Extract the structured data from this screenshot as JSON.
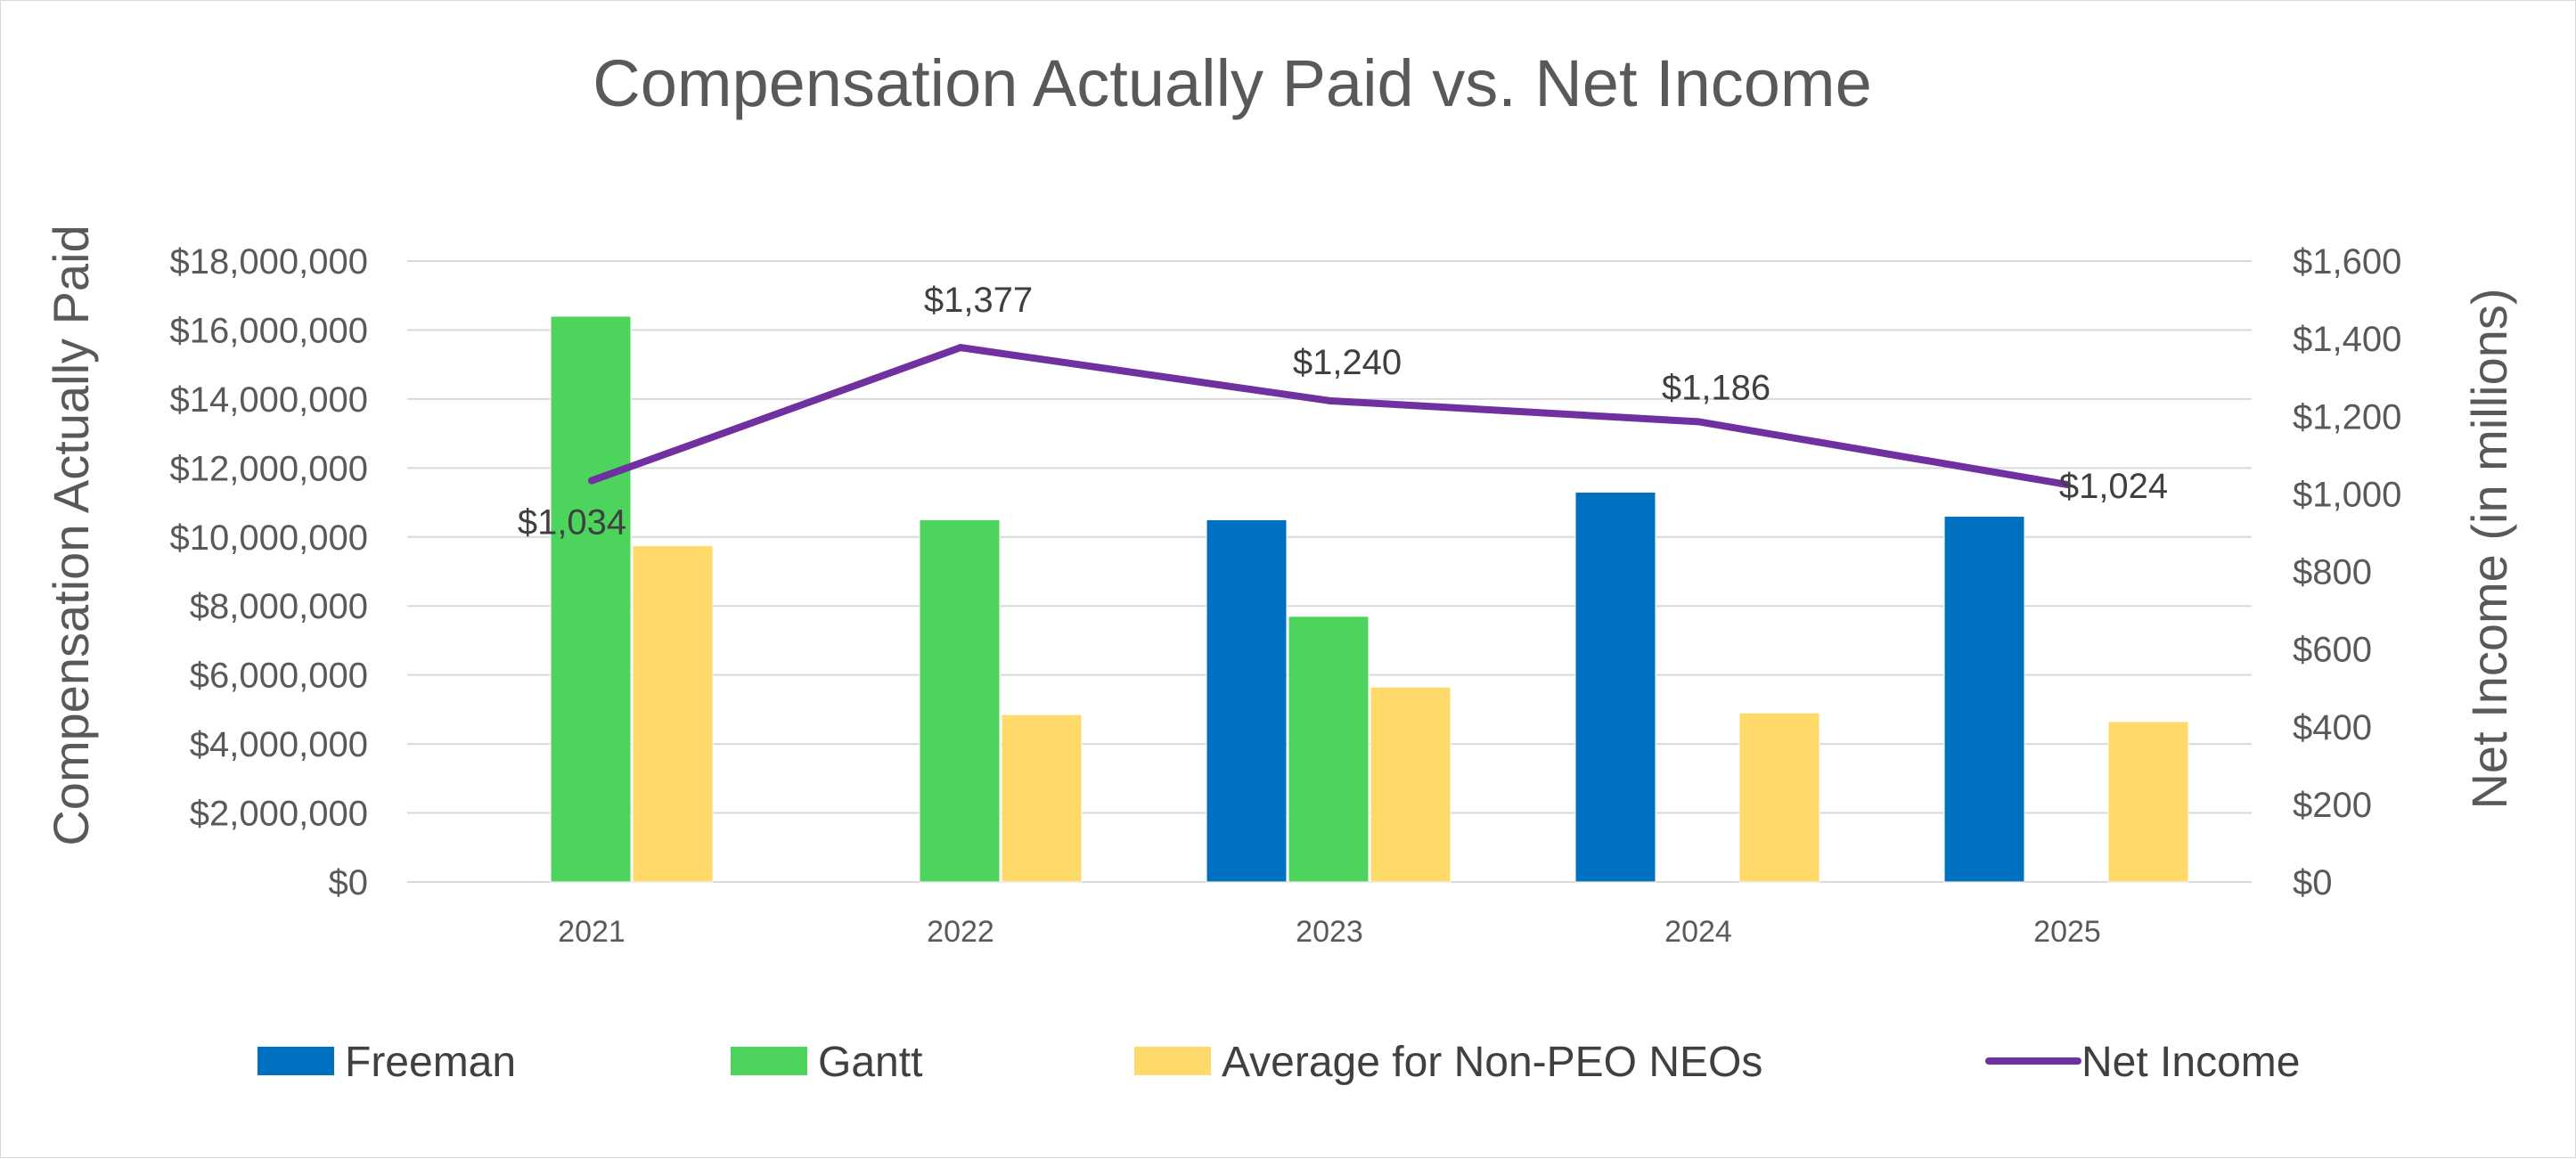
{
  "chart_data": {
    "type": "bar",
    "title": "Compensation Actually Paid vs. Net Income",
    "categories": [
      "2021",
      "2022",
      "2023",
      "2024",
      "2025"
    ],
    "y_left": {
      "label": "Compensation Actually Paid",
      "min": 0,
      "max": 18000000,
      "step": 2000000,
      "tick_labels": [
        "$0",
        "$2,000,000",
        "$4,000,000",
        "$6,000,000",
        "$8,000,000",
        "$10,000,000",
        "$12,000,000",
        "$14,000,000",
        "$16,000,000",
        "$18,000,000"
      ]
    },
    "y_right": {
      "label": "Net Income (in millions)",
      "min": 0,
      "max": 1600,
      "step": 200,
      "tick_labels": [
        "$0",
        "$200",
        "$400",
        "$600",
        "$800",
        "$1,000",
        "$1,200",
        "$1,400",
        "$1,600"
      ]
    },
    "series": [
      {
        "name": "Freeman",
        "type": "bar",
        "color": "#0070C0",
        "values": [
          null,
          null,
          10500000,
          11300000,
          10600000
        ]
      },
      {
        "name": "Gantt",
        "type": "bar",
        "color": "#4CD45C",
        "values": [
          16400000,
          10500000,
          7700000,
          null,
          null
        ]
      },
      {
        "name": "Average for Non-PEO NEOs",
        "type": "bar",
        "color": "#FFDA6A",
        "values": [
          9750000,
          4850000,
          5650000,
          4900000,
          4650000
        ]
      },
      {
        "name": "Net Income",
        "type": "line",
        "axis": "right",
        "color": "#7030A0",
        "values": [
          1034,
          1377,
          1240,
          1186,
          1024
        ],
        "labels": [
          "$1,034",
          "$1,377",
          "$1,240",
          "$1,186",
          "$1,024"
        ]
      }
    ],
    "grid": true,
    "legend": "bottom"
  }
}
